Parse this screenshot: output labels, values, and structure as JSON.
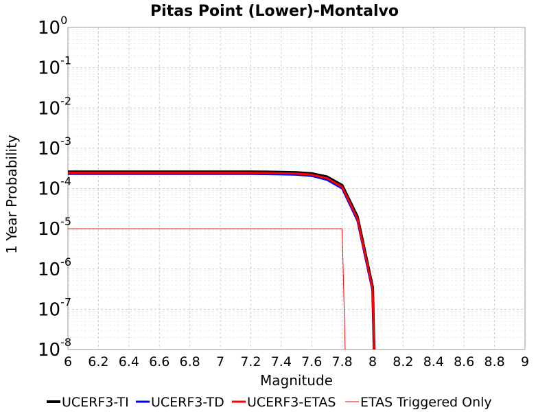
{
  "chart_data": {
    "type": "line",
    "title": "Pitas Point (Lower)-Montalvo",
    "xlabel": "Magnitude",
    "ylabel": "1 Year Probability",
    "xlim": [
      6,
      9
    ],
    "ylim": [
      1e-08,
      1
    ],
    "y_scale": "log",
    "grid": true,
    "legend_position": "bottom",
    "x_ticks": [
      "6",
      "6.2",
      "6.4",
      "6.6",
      "6.8",
      "7",
      "7.2",
      "7.4",
      "7.6",
      "7.8",
      "8",
      "8.2",
      "8.4",
      "8.6",
      "8.8",
      "9"
    ],
    "y_ticks": [
      {
        "base": "10",
        "exp": "0"
      },
      {
        "base": "10",
        "exp": "-1"
      },
      {
        "base": "10",
        "exp": "-2"
      },
      {
        "base": "10",
        "exp": "-3"
      },
      {
        "base": "10",
        "exp": "-4"
      },
      {
        "base": "10",
        "exp": "-5"
      },
      {
        "base": "10",
        "exp": "-6"
      },
      {
        "base": "10",
        "exp": "-7"
      },
      {
        "base": "10",
        "exp": "-8"
      }
    ],
    "series": [
      {
        "name": "UCERF3-TI",
        "color": "#000000",
        "width": 4,
        "x": [
          6.0,
          6.1,
          6.2,
          6.3,
          6.4,
          6.5,
          6.6,
          6.7,
          6.8,
          6.9,
          7.0,
          7.1,
          7.2,
          7.3,
          7.4,
          7.5,
          7.6,
          7.7,
          7.8,
          7.9,
          8.0,
          8.01
        ],
        "y": [
          0.00026,
          0.00026,
          0.00026,
          0.00026,
          0.00026,
          0.00026,
          0.00026,
          0.00026,
          0.00026,
          0.00026,
          0.00026,
          0.00026,
          0.00026,
          0.000258,
          0.000255,
          0.00025,
          0.000235,
          0.000195,
          0.00012,
          2e-05,
          3.5e-07,
          1e-08
        ]
      },
      {
        "name": "UCERF3-TD",
        "color": "#0000ff",
        "width": 3,
        "x": [
          6.0,
          6.1,
          6.2,
          6.3,
          6.4,
          6.5,
          6.6,
          6.7,
          6.8,
          6.9,
          7.0,
          7.1,
          7.2,
          7.3,
          7.4,
          7.5,
          7.6,
          7.7,
          7.8,
          7.9,
          8.0,
          8.01
        ],
        "y": [
          0.00023,
          0.00023,
          0.00023,
          0.00023,
          0.00023,
          0.00023,
          0.00023,
          0.00023,
          0.00023,
          0.00023,
          0.00023,
          0.00023,
          0.00023,
          0.000228,
          0.000225,
          0.00022,
          0.000205,
          0.000165,
          0.0001,
          1.6e-05,
          2.8e-07,
          1e-08
        ]
      },
      {
        "name": "UCERF3-ETAS",
        "color": "#ff0000",
        "width": 3,
        "x": [
          6.0,
          6.1,
          6.2,
          6.3,
          6.4,
          6.5,
          6.6,
          6.7,
          6.8,
          6.9,
          7.0,
          7.1,
          7.2,
          7.3,
          7.4,
          7.5,
          7.6,
          7.7,
          7.8,
          7.9,
          8.0,
          8.01
        ],
        "y": [
          0.000245,
          0.000245,
          0.000245,
          0.000245,
          0.000245,
          0.000245,
          0.000245,
          0.000245,
          0.000245,
          0.000245,
          0.000245,
          0.000245,
          0.000245,
          0.000243,
          0.00024,
          0.000235,
          0.00022,
          0.00018,
          0.00011,
          1.8e-05,
          3.2e-07,
          1e-08
        ]
      },
      {
        "name": "ETAS Triggered Only",
        "color": "#ff0000",
        "width": 1,
        "x": [
          6.0,
          7.8,
          7.82
        ],
        "y": [
          1e-05,
          1e-05,
          1e-08
        ]
      }
    ]
  }
}
